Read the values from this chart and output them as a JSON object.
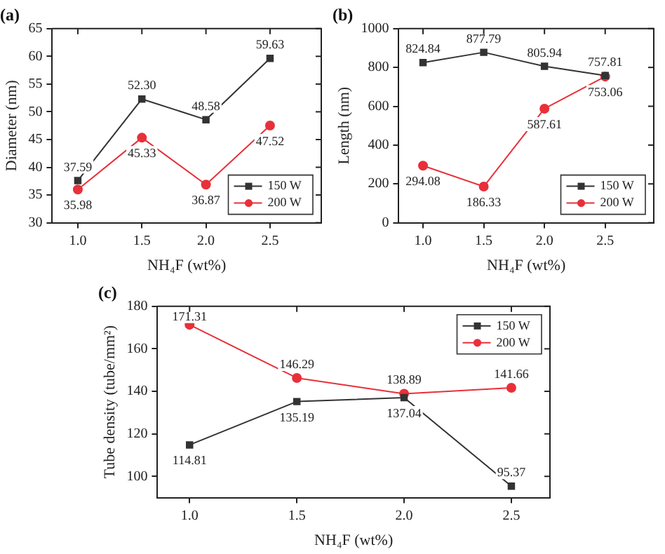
{
  "chart_data": [
    {
      "type": "line",
      "title": "(a)",
      "xlabel": "NH₄F (wt%)",
      "ylabel": "Diameter (nm)",
      "x": [
        1.0,
        1.5,
        2.0,
        2.5
      ],
      "xlim": [
        0.8,
        2.9
      ],
      "xticks": [
        {
          "value": 1,
          "label": "1.0"
        },
        {
          "value": 1.5,
          "label": "1.5"
        },
        {
          "value": 2,
          "label": "2.0"
        },
        {
          "value": 2.5,
          "label": "2.5"
        }
      ],
      "ylim": [
        30,
        65
      ],
      "yticks": [
        30,
        35,
        40,
        45,
        50,
        55,
        60,
        65
      ],
      "legend": "bottom right",
      "grid": false,
      "series": [
        {
          "name": "150 W",
          "color": "#333333",
          "marker": "square",
          "values": [
            37.59,
            52.3,
            48.58,
            59.63
          ],
          "value_labels": [
            "37.59",
            "52.30",
            "48.58",
            "59.63"
          ]
        },
        {
          "name": "200 W",
          "color": "#e8303a",
          "marker": "circle",
          "values": [
            35.98,
            45.33,
            36.87,
            47.52
          ],
          "value_labels": [
            "35.98",
            "45.33",
            "36.87",
            "47.52"
          ]
        }
      ]
    },
    {
      "type": "line",
      "title": "(b)",
      "xlabel": "NH₄F (wt%)",
      "ylabel": "Length (nm)",
      "x": [
        1.0,
        1.5,
        2.0,
        2.5
      ],
      "xlim": [
        0.8,
        2.9
      ],
      "xticks": [
        {
          "value": 1,
          "label": "1.0"
        },
        {
          "value": 1.5,
          "label": "1.5"
        },
        {
          "value": 2,
          "label": "2.0"
        },
        {
          "value": 2.5,
          "label": "2.5"
        }
      ],
      "ylim": [
        0,
        1000
      ],
      "yticks": [
        0,
        200,
        400,
        600,
        800,
        1000
      ],
      "legend": "bottom right",
      "grid": false,
      "series": [
        {
          "name": "150 W",
          "color": "#333333",
          "marker": "square",
          "values": [
            824.84,
            877.79,
            805.94,
            757.81
          ],
          "value_labels": [
            "824.84",
            "877.79",
            "805.94",
            "757.81"
          ]
        },
        {
          "name": "200 W",
          "color": "#e8303a",
          "marker": "circle",
          "values": [
            294.08,
            186.33,
            587.61,
            753.06
          ],
          "value_labels": [
            "294.08",
            "186.33",
            "587.61",
            "753.06"
          ]
        }
      ]
    },
    {
      "type": "line",
      "title": "(c)",
      "xlabel": "NH₄F (wt%)",
      "ylabel": "Tube density (tube/mm²)",
      "x": [
        1.0,
        1.5,
        2.0,
        2.5
      ],
      "xlim": [
        0.85,
        2.68
      ],
      "xticks": [
        {
          "value": 1,
          "label": "1.0"
        },
        {
          "value": 1.5,
          "label": "1.5"
        },
        {
          "value": 2,
          "label": "2.0"
        },
        {
          "value": 2.5,
          "label": "2.5"
        }
      ],
      "ylim": [
        90,
        180
      ],
      "yticks": [
        100,
        120,
        140,
        160,
        180
      ],
      "legend": "top right",
      "grid": false,
      "series": [
        {
          "name": "150 W",
          "color": "#333333",
          "marker": "square",
          "values": [
            114.81,
            135.19,
            137.04,
            95.37
          ],
          "value_labels": [
            "114.81",
            "135.19",
            "137.04",
            "95.37"
          ]
        },
        {
          "name": "200 W",
          "color": "#e8303a",
          "marker": "circle",
          "values": [
            171.31,
            146.29,
            138.89,
            141.66
          ],
          "value_labels": [
            "171.31",
            "146.29",
            "138.89",
            "141.66"
          ]
        }
      ]
    }
  ]
}
